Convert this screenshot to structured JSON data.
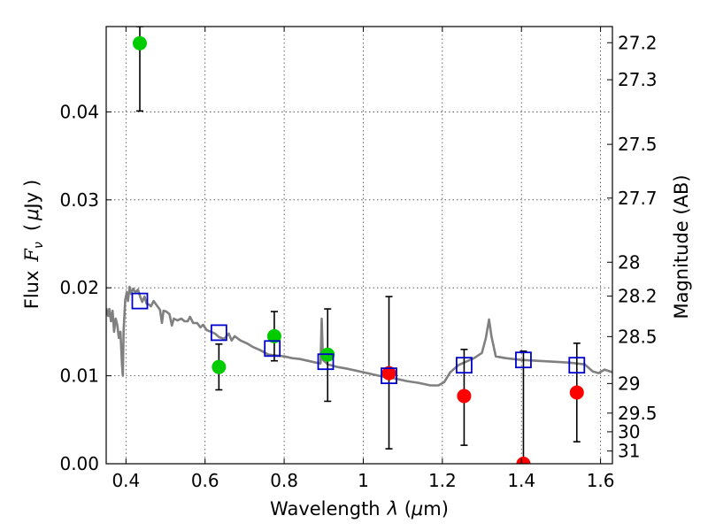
{
  "chart_data": {
    "type": "scatter",
    "x_axis": {
      "label_prefix": "Wavelength",
      "label_symbol": "λ",
      "label_unit_open": " (",
      "label_unit_greek": "μ",
      "label_unit_rest": "m)",
      "range": [
        0.35,
        1.63
      ],
      "ticks": [
        0.4,
        0.6,
        0.8,
        1.0,
        1.2,
        1.4,
        1.6
      ],
      "tick_labels": [
        "0.4",
        "0.6",
        "0.8",
        "1",
        "1.2",
        "1.4",
        "1.6"
      ]
    },
    "y_axis": {
      "label_prefix": "Flux",
      "label_symbol_main": "F",
      "label_symbol_sub": "ν",
      "label_unit_open": "(",
      "label_unit_greek": "μ",
      "label_unit_rest": "Jy",
      "label_unit_close": ")",
      "range": [
        0.0,
        0.0497
      ],
      "ticks": [
        0.0,
        0.01,
        0.02,
        0.03,
        0.04
      ],
      "tick_labels": [
        "0.00",
        "0.01",
        "0.02",
        "0.03",
        "0.04"
      ]
    },
    "y2_axis": {
      "label": "Magnitude (AB)",
      "scale": "AB magnitude of flux in μJy (m = 23.9 − 2.5·log10 F)",
      "ticks": [
        27.2,
        27.3,
        27.5,
        27.7,
        28,
        28.2,
        28.5,
        29,
        29.5,
        30,
        31
      ],
      "tick_labels": [
        "27.2",
        "27.3",
        "27.5",
        "27.7",
        "28",
        "28.2",
        "28.5",
        "29",
        "29.5",
        "30",
        "31"
      ]
    },
    "grid": true,
    "colors": {
      "green": "#00cc00",
      "red": "#ff0000",
      "blue": "#0000cc",
      "model": "#808080",
      "errorbar": "#000000"
    },
    "series": [
      {
        "marker": "filled-circle",
        "color": "green",
        "points": [
          {
            "x": 0.435,
            "y": 0.0478,
            "err_low": 0.0401,
            "err_high": 0.0497
          },
          {
            "x": 0.635,
            "y": 0.011,
            "err_low": 0.0084,
            "err_high": 0.0136
          },
          {
            "x": 0.775,
            "y": 0.0145,
            "err_low": 0.0117,
            "err_high": 0.0173
          },
          {
            "x": 0.91,
            "y": 0.0124,
            "err_low": 0.0071,
            "err_high": 0.0176
          }
        ]
      },
      {
        "marker": "filled-circle",
        "color": "red",
        "points": [
          {
            "x": 1.065,
            "y": 0.0103,
            "err_low": 0.0017,
            "err_high": 0.019
          },
          {
            "x": 1.255,
            "y": 0.0077,
            "err_low": 0.0021,
            "err_high": 0.013
          },
          {
            "x": 1.405,
            "y": 0.0,
            "err_low": 0.0,
            "err_high": 0.0128
          },
          {
            "x": 1.54,
            "y": 0.0081,
            "err_low": 0.0025,
            "err_high": 0.0137
          }
        ]
      },
      {
        "marker": "open-square",
        "color": "blue",
        "points": [
          {
            "x": 0.435,
            "y": 0.0185
          },
          {
            "x": 0.635,
            "y": 0.0149
          },
          {
            "x": 0.77,
            "y": 0.0131
          },
          {
            "x": 0.905,
            "y": 0.0116
          },
          {
            "x": 1.065,
            "y": 0.01
          },
          {
            "x": 1.255,
            "y": 0.0112
          },
          {
            "x": 1.405,
            "y": 0.0118
          },
          {
            "x": 1.54,
            "y": 0.0112
          }
        ]
      },
      {
        "marker": "line",
        "color": "model",
        "points": [
          [
            0.35,
            0.0177
          ],
          [
            0.355,
            0.0168
          ],
          [
            0.358,
            0.0176
          ],
          [
            0.362,
            0.0162
          ],
          [
            0.366,
            0.0174
          ],
          [
            0.37,
            0.015
          ],
          [
            0.374,
            0.0165
          ],
          [
            0.378,
            0.0158
          ],
          [
            0.382,
            0.0143
          ],
          [
            0.386,
            0.015
          ],
          [
            0.39,
            0.0112
          ],
          [
            0.392,
            0.01
          ],
          [
            0.394,
            0.0152
          ],
          [
            0.398,
            0.0186
          ],
          [
            0.402,
            0.0195
          ],
          [
            0.405,
            0.0185
          ],
          [
            0.409,
            0.0201
          ],
          [
            0.413,
            0.0193
          ],
          [
            0.418,
            0.0199
          ],
          [
            0.424,
            0.0195
          ],
          [
            0.43,
            0.0198
          ],
          [
            0.436,
            0.019
          ],
          [
            0.441,
            0.0184
          ],
          [
            0.447,
            0.019
          ],
          [
            0.452,
            0.0182
          ],
          [
            0.458,
            0.0181
          ],
          [
            0.463,
            0.0179
          ],
          [
            0.47,
            0.0185
          ],
          [
            0.478,
            0.018
          ],
          [
            0.486,
            0.0175
          ],
          [
            0.491,
            0.016
          ],
          [
            0.495,
            0.0174
          ],
          [
            0.502,
            0.0173
          ],
          [
            0.51,
            0.017
          ],
          [
            0.516,
            0.0157
          ],
          [
            0.521,
            0.0165
          ],
          [
            0.53,
            0.0163
          ],
          [
            0.54,
            0.0165
          ],
          [
            0.548,
            0.0162
          ],
          [
            0.556,
            0.0162
          ],
          [
            0.562,
            0.0167
          ],
          [
            0.57,
            0.016
          ],
          [
            0.58,
            0.016
          ],
          [
            0.588,
            0.0155
          ],
          [
            0.595,
            0.0158
          ],
          [
            0.604,
            0.0152
          ],
          [
            0.615,
            0.015
          ],
          [
            0.625,
            0.0148
          ],
          [
            0.635,
            0.0144
          ],
          [
            0.648,
            0.0142
          ],
          [
            0.66,
            0.0148
          ],
          [
            0.667,
            0.014
          ],
          [
            0.675,
            0.0145
          ],
          [
            0.69,
            0.014
          ],
          [
            0.705,
            0.0137
          ],
          [
            0.72,
            0.0133
          ],
          [
            0.74,
            0.0129
          ],
          [
            0.76,
            0.0124
          ],
          [
            0.78,
            0.0123
          ],
          [
            0.8,
            0.0122
          ],
          [
            0.82,
            0.012
          ],
          [
            0.84,
            0.0119
          ],
          [
            0.86,
            0.0117
          ],
          [
            0.88,
            0.0115
          ],
          [
            0.892,
            0.0114
          ],
          [
            0.895,
            0.0165
          ],
          [
            0.898,
            0.0118
          ],
          [
            0.91,
            0.0113
          ],
          [
            0.935,
            0.011
          ],
          [
            0.96,
            0.0108
          ],
          [
            0.99,
            0.0105
          ],
          [
            1.02,
            0.0102
          ],
          [
            1.05,
            0.0099
          ],
          [
            1.08,
            0.0097
          ],
          [
            1.11,
            0.0094
          ],
          [
            1.14,
            0.0092
          ],
          [
            1.17,
            0.0089
          ],
          [
            1.19,
            0.0089
          ],
          [
            1.205,
            0.0093
          ],
          [
            1.22,
            0.0104
          ],
          [
            1.24,
            0.0112
          ],
          [
            1.26,
            0.0116
          ],
          [
            1.28,
            0.012
          ],
          [
            1.3,
            0.0126
          ],
          [
            1.31,
            0.0143
          ],
          [
            1.318,
            0.0164
          ],
          [
            1.324,
            0.0145
          ],
          [
            1.335,
            0.0122
          ],
          [
            1.36,
            0.012
          ],
          [
            1.4,
            0.0118
          ],
          [
            1.44,
            0.0117
          ],
          [
            1.48,
            0.0116
          ],
          [
            1.52,
            0.0115
          ],
          [
            1.56,
            0.0113
          ],
          [
            1.58,
            0.0105
          ],
          [
            1.595,
            0.0103
          ],
          [
            1.61,
            0.0107
          ],
          [
            1.63,
            0.0104
          ]
        ]
      }
    ]
  }
}
